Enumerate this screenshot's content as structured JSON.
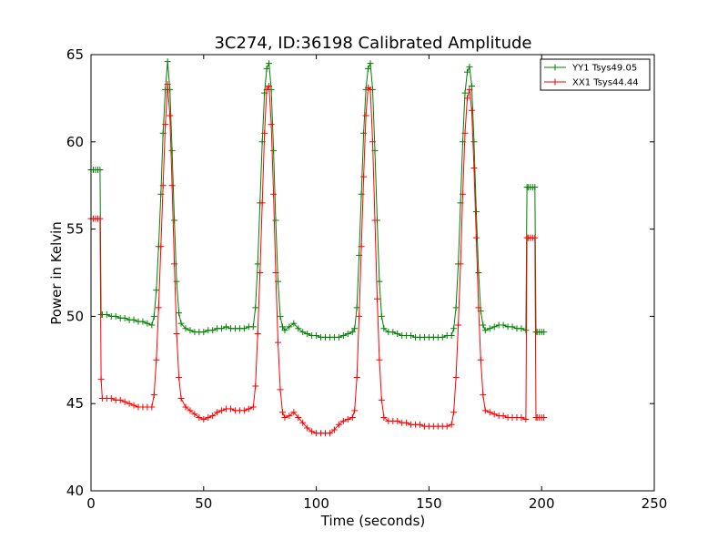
{
  "chart_data": {
    "type": "line",
    "title": "3C274, ID:36198 Calibrated Amplitude",
    "xlabel": "Time (seconds)",
    "ylabel": "Power in Kelvin",
    "xlim": [
      0,
      250
    ],
    "ylim": [
      40,
      65
    ],
    "xticks": [
      0,
      50,
      100,
      150,
      200,
      250
    ],
    "yticks": [
      40,
      45,
      50,
      55,
      60,
      65
    ],
    "grid": false,
    "legend_position": "top-right",
    "marker": "+",
    "series": [
      {
        "name": "YY1 Tsys49.05",
        "color": "#008000",
        "points": [
          [
            0,
            58.4
          ],
          [
            1,
            58.4
          ],
          [
            2,
            58.4
          ],
          [
            3,
            58.4
          ],
          [
            4,
            58.4
          ],
          [
            4.5,
            50.1
          ],
          [
            5,
            50.1
          ],
          [
            7,
            50.1
          ],
          [
            9,
            50.0
          ],
          [
            11,
            50.0
          ],
          [
            13,
            49.9
          ],
          [
            15,
            49.9
          ],
          [
            17,
            49.8
          ],
          [
            19,
            49.8
          ],
          [
            21,
            49.7
          ],
          [
            23,
            49.7
          ],
          [
            25,
            49.6
          ],
          [
            27,
            49.5
          ],
          [
            28,
            50.0
          ],
          [
            29,
            51.5
          ],
          [
            30,
            54.0
          ],
          [
            31,
            57.0
          ],
          [
            32,
            60.5
          ],
          [
            33,
            63.0
          ],
          [
            34,
            64.6
          ],
          [
            35,
            63.0
          ],
          [
            36,
            59.5
          ],
          [
            37,
            55.5
          ],
          [
            38,
            52.0
          ],
          [
            39,
            50.2
          ],
          [
            40,
            49.6
          ],
          [
            42,
            49.3
          ],
          [
            44,
            49.2
          ],
          [
            46,
            49.1
          ],
          [
            48,
            49.1
          ],
          [
            50,
            49.1
          ],
          [
            52,
            49.2
          ],
          [
            54,
            49.2
          ],
          [
            56,
            49.3
          ],
          [
            58,
            49.3
          ],
          [
            60,
            49.4
          ],
          [
            62,
            49.3
          ],
          [
            64,
            49.3
          ],
          [
            66,
            49.3
          ],
          [
            68,
            49.3
          ],
          [
            70,
            49.4
          ],
          [
            72,
            49.4
          ],
          [
            73,
            50.5
          ],
          [
            74,
            53.0
          ],
          [
            75,
            56.5
          ],
          [
            76,
            60.0
          ],
          [
            77,
            62.8
          ],
          [
            78,
            64.2
          ],
          [
            79,
            64.5
          ],
          [
            80,
            63.0
          ],
          [
            81,
            59.5
          ],
          [
            82,
            55.5
          ],
          [
            83,
            52.0
          ],
          [
            84,
            50.0
          ],
          [
            85,
            49.4
          ],
          [
            86,
            49.2
          ],
          [
            88,
            49.4
          ],
          [
            90,
            49.6
          ],
          [
            92,
            49.3
          ],
          [
            94,
            49.1
          ],
          [
            96,
            49.0
          ],
          [
            98,
            48.9
          ],
          [
            100,
            48.9
          ],
          [
            102,
            48.8
          ],
          [
            104,
            48.8
          ],
          [
            106,
            48.8
          ],
          [
            108,
            48.8
          ],
          [
            110,
            48.8
          ],
          [
            112,
            48.9
          ],
          [
            114,
            49.0
          ],
          [
            116,
            49.1
          ],
          [
            117,
            49.3
          ],
          [
            118,
            50.5
          ],
          [
            119,
            53.5
          ],
          [
            120,
            57.0
          ],
          [
            121,
            60.5
          ],
          [
            122,
            63.0
          ],
          [
            123,
            64.2
          ],
          [
            124,
            64.5
          ],
          [
            125,
            63.0
          ],
          [
            126,
            59.5
          ],
          [
            127,
            55.5
          ],
          [
            128,
            52.0
          ],
          [
            129,
            50.0
          ],
          [
            130,
            49.3
          ],
          [
            132,
            49.1
          ],
          [
            134,
            49.1
          ],
          [
            136,
            49.0
          ],
          [
            138,
            48.9
          ],
          [
            140,
            48.9
          ],
          [
            142,
            48.9
          ],
          [
            144,
            48.8
          ],
          [
            146,
            48.8
          ],
          [
            148,
            48.8
          ],
          [
            150,
            48.8
          ],
          [
            152,
            48.8
          ],
          [
            154,
            48.8
          ],
          [
            156,
            48.8
          ],
          [
            158,
            48.9
          ],
          [
            160,
            48.9
          ],
          [
            161,
            49.3
          ],
          [
            162,
            50.5
          ],
          [
            163,
            53.0
          ],
          [
            164,
            56.5
          ],
          [
            165,
            60.0
          ],
          [
            166,
            62.8
          ],
          [
            167,
            64.0
          ],
          [
            168,
            64.3
          ],
          [
            169,
            63.2
          ],
          [
            170,
            60.0
          ],
          [
            171,
            56.0
          ],
          [
            172,
            52.5
          ],
          [
            173,
            50.3
          ],
          [
            174,
            49.5
          ],
          [
            175,
            49.2
          ],
          [
            177,
            49.3
          ],
          [
            179,
            49.4
          ],
          [
            181,
            49.5
          ],
          [
            183,
            49.5
          ],
          [
            185,
            49.4
          ],
          [
            187,
            49.4
          ],
          [
            189,
            49.3
          ],
          [
            191,
            49.3
          ],
          [
            193,
            49.2
          ],
          [
            193.5,
            57.4
          ],
          [
            194,
            57.4
          ],
          [
            195,
            57.4
          ],
          [
            196,
            57.4
          ],
          [
            197,
            57.4
          ],
          [
            197.5,
            49.1
          ],
          [
            198,
            49.1
          ],
          [
            199,
            49.1
          ],
          [
            200,
            49.1
          ],
          [
            201,
            49.1
          ]
        ]
      },
      {
        "name": "XX1 Tsys44.44",
        "color": "#ff0000",
        "points": [
          [
            0,
            55.6
          ],
          [
            1,
            55.6
          ],
          [
            2,
            55.6
          ],
          [
            3,
            55.6
          ],
          [
            4,
            55.6
          ],
          [
            4.5,
            46.4
          ],
          [
            5,
            45.3
          ],
          [
            7,
            45.3
          ],
          [
            9,
            45.3
          ],
          [
            11,
            45.2
          ],
          [
            13,
            45.2
          ],
          [
            15,
            45.1
          ],
          [
            17,
            45.0
          ],
          [
            19,
            44.9
          ],
          [
            21,
            44.8
          ],
          [
            23,
            44.8
          ],
          [
            25,
            44.8
          ],
          [
            27,
            44.8
          ],
          [
            28,
            45.5
          ],
          [
            29,
            47.5
          ],
          [
            30,
            50.5
          ],
          [
            31,
            54.0
          ],
          [
            32,
            57.5
          ],
          [
            33,
            61.0
          ],
          [
            34,
            63.3
          ],
          [
            35,
            61.5
          ],
          [
            36,
            57.5
          ],
          [
            37,
            53.0
          ],
          [
            38,
            49.0
          ],
          [
            39,
            46.5
          ],
          [
            40,
            45.3
          ],
          [
            42,
            44.8
          ],
          [
            44,
            44.6
          ],
          [
            46,
            44.4
          ],
          [
            48,
            44.2
          ],
          [
            50,
            44.1
          ],
          [
            52,
            44.2
          ],
          [
            54,
            44.3
          ],
          [
            56,
            44.5
          ],
          [
            58,
            44.6
          ],
          [
            60,
            44.7
          ],
          [
            62,
            44.7
          ],
          [
            64,
            44.6
          ],
          [
            66,
            44.6
          ],
          [
            68,
            44.6
          ],
          [
            70,
            44.7
          ],
          [
            72,
            44.8
          ],
          [
            73,
            46.0
          ],
          [
            74,
            49.0
          ],
          [
            75,
            52.5
          ],
          [
            76,
            56.5
          ],
          [
            77,
            60.5
          ],
          [
            78,
            63.0
          ],
          [
            79,
            63.2
          ],
          [
            80,
            61.0
          ],
          [
            81,
            57.0
          ],
          [
            82,
            52.5
          ],
          [
            83,
            48.5
          ],
          [
            84,
            45.8
          ],
          [
            85,
            44.5
          ],
          [
            86,
            44.2
          ],
          [
            88,
            44.3
          ],
          [
            90,
            44.5
          ],
          [
            92,
            44.2
          ],
          [
            94,
            43.9
          ],
          [
            96,
            43.6
          ],
          [
            98,
            43.4
          ],
          [
            100,
            43.3
          ],
          [
            102,
            43.3
          ],
          [
            104,
            43.3
          ],
          [
            106,
            43.3
          ],
          [
            108,
            43.5
          ],
          [
            110,
            43.8
          ],
          [
            112,
            44.0
          ],
          [
            114,
            44.1
          ],
          [
            116,
            44.2
          ],
          [
            117,
            44.6
          ],
          [
            118,
            46.5
          ],
          [
            119,
            50.0
          ],
          [
            120,
            54.0
          ],
          [
            121,
            58.0
          ],
          [
            122,
            61.5
          ],
          [
            123,
            63.1
          ],
          [
            124,
            63.0
          ],
          [
            125,
            60.0
          ],
          [
            126,
            55.5
          ],
          [
            127,
            51.0
          ],
          [
            128,
            47.5
          ],
          [
            129,
            45.2
          ],
          [
            130,
            44.2
          ],
          [
            132,
            44.0
          ],
          [
            134,
            44.0
          ],
          [
            136,
            44.0
          ],
          [
            138,
            43.9
          ],
          [
            140,
            43.9
          ],
          [
            142,
            43.8
          ],
          [
            144,
            43.8
          ],
          [
            146,
            43.8
          ],
          [
            148,
            43.7
          ],
          [
            150,
            43.7
          ],
          [
            152,
            43.7
          ],
          [
            154,
            43.7
          ],
          [
            156,
            43.7
          ],
          [
            158,
            43.7
          ],
          [
            160,
            43.8
          ],
          [
            161,
            44.5
          ],
          [
            162,
            46.5
          ],
          [
            163,
            49.5
          ],
          [
            164,
            53.0
          ],
          [
            165,
            57.0
          ],
          [
            166,
            60.5
          ],
          [
            167,
            62.5
          ],
          [
            168,
            63.0
          ],
          [
            169,
            61.8
          ],
          [
            170,
            58.5
          ],
          [
            171,
            54.5
          ],
          [
            172,
            50.5
          ],
          [
            173,
            47.5
          ],
          [
            174,
            45.5
          ],
          [
            175,
            44.6
          ],
          [
            177,
            44.5
          ],
          [
            179,
            44.4
          ],
          [
            181,
            44.3
          ],
          [
            183,
            44.3
          ],
          [
            185,
            44.2
          ],
          [
            187,
            44.2
          ],
          [
            189,
            44.2
          ],
          [
            191,
            44.2
          ],
          [
            193,
            44.1
          ],
          [
            193.5,
            54.5
          ],
          [
            194,
            54.5
          ],
          [
            195,
            54.5
          ],
          [
            196,
            54.5
          ],
          [
            197,
            54.5
          ],
          [
            197.5,
            44.2
          ],
          [
            198,
            44.2
          ],
          [
            199,
            44.2
          ],
          [
            200,
            44.2
          ],
          [
            201,
            44.2
          ]
        ]
      }
    ]
  }
}
